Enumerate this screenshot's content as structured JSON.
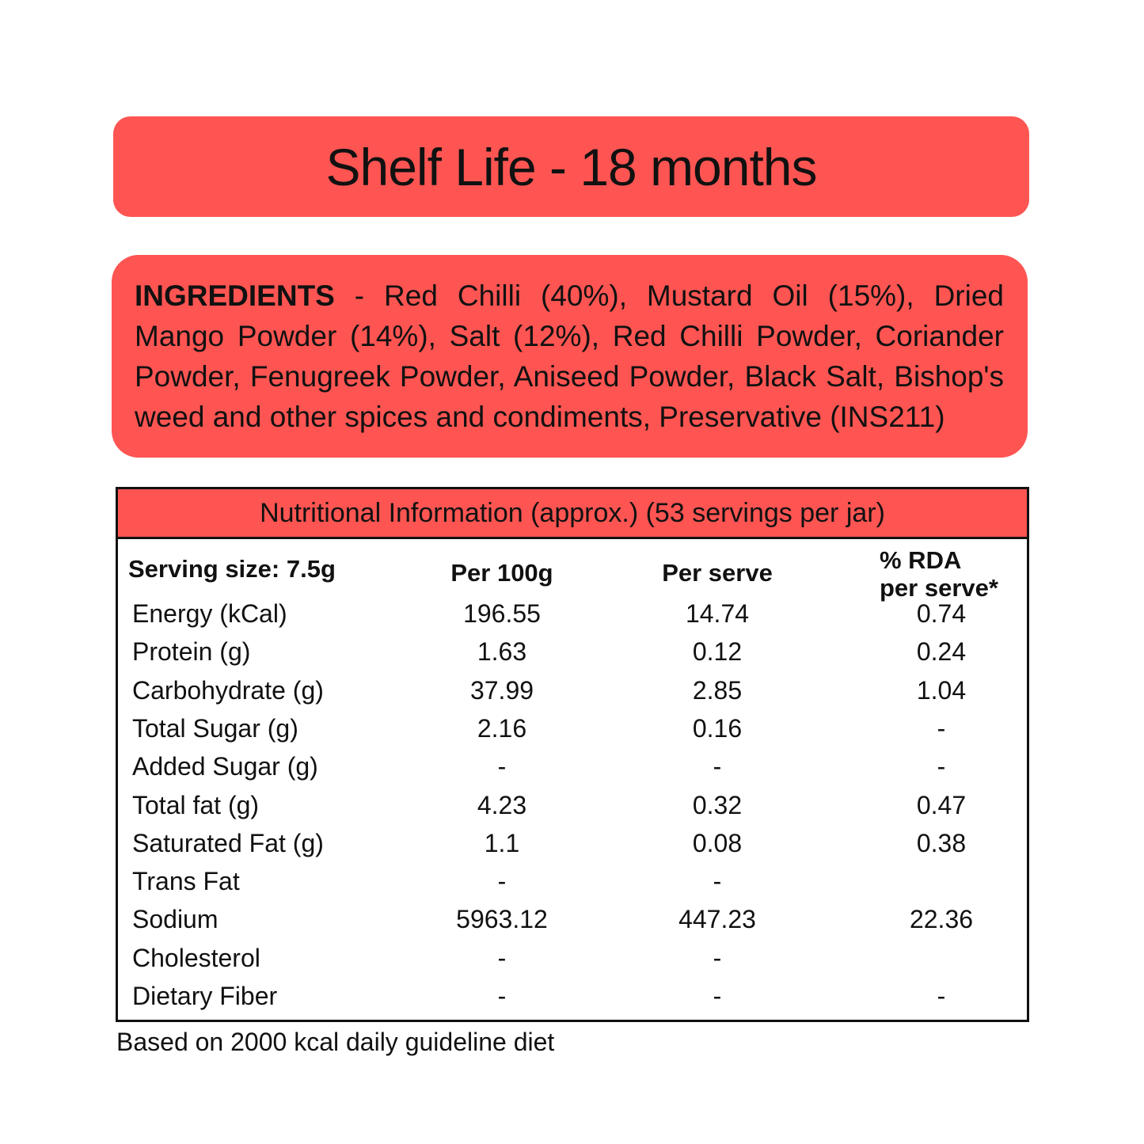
{
  "shelf_life": {
    "text": "Shelf Life - 18 months"
  },
  "ingredients": {
    "heading": "INGREDIENTS",
    "text": " - Red Chilli (40%), Mustard Oil (15%), Dried Mango Powder (14%), Salt (12%), Red Chilli Powder, Coriander Powder, Fenugreek Powder, Aniseed Powder, Black Salt, Bishop's weed and other spices and condiments, Preservative (INS211)"
  },
  "nutrition": {
    "title": "Nutritional Information (approx.) (53 servings per jar)",
    "serving_size": "Serving size: 7.5g",
    "headers": {
      "per100": "Per 100g",
      "perserve": "Per serve",
      "rda_line1": "% RDA",
      "rda_line2": "per serve*"
    },
    "rows": [
      {
        "name": "Energy (kCal)",
        "per100": "196.55",
        "perserve": "14.74",
        "rda": "0.74"
      },
      {
        "name": "Protein (g)",
        "per100": "1.63",
        "perserve": "0.12",
        "rda": "0.24"
      },
      {
        "name": "Carbohydrate (g)",
        "per100": "37.99",
        "perserve": "2.85",
        "rda": "1.04"
      },
      {
        "name": "Total Sugar (g)",
        "per100": "2.16",
        "perserve": "0.16",
        "rda": "-"
      },
      {
        "name": "Added Sugar (g)",
        "per100": "-",
        "perserve": "-",
        "rda": "-"
      },
      {
        "name": "Total fat (g)",
        "per100": "4.23",
        "perserve": "0.32",
        "rda": "0.47"
      },
      {
        "name": "Saturated Fat (g)",
        "per100": "1.1",
        "perserve": "0.08",
        "rda": "0.38"
      },
      {
        "name": "Trans Fat",
        "per100": "-",
        "perserve": "-",
        "rda": ""
      },
      {
        "name": "Sodium",
        "per100": "5963.12",
        "perserve": "447.23",
        "rda": "22.36"
      },
      {
        "name": "Cholesterol",
        "per100": "-",
        "perserve": "-",
        "rda": ""
      },
      {
        "name": "Dietary Fiber",
        "per100": "-",
        "perserve": "-",
        "rda": "-"
      }
    ]
  },
  "footnote": "Based on 2000 kcal daily guideline diet"
}
